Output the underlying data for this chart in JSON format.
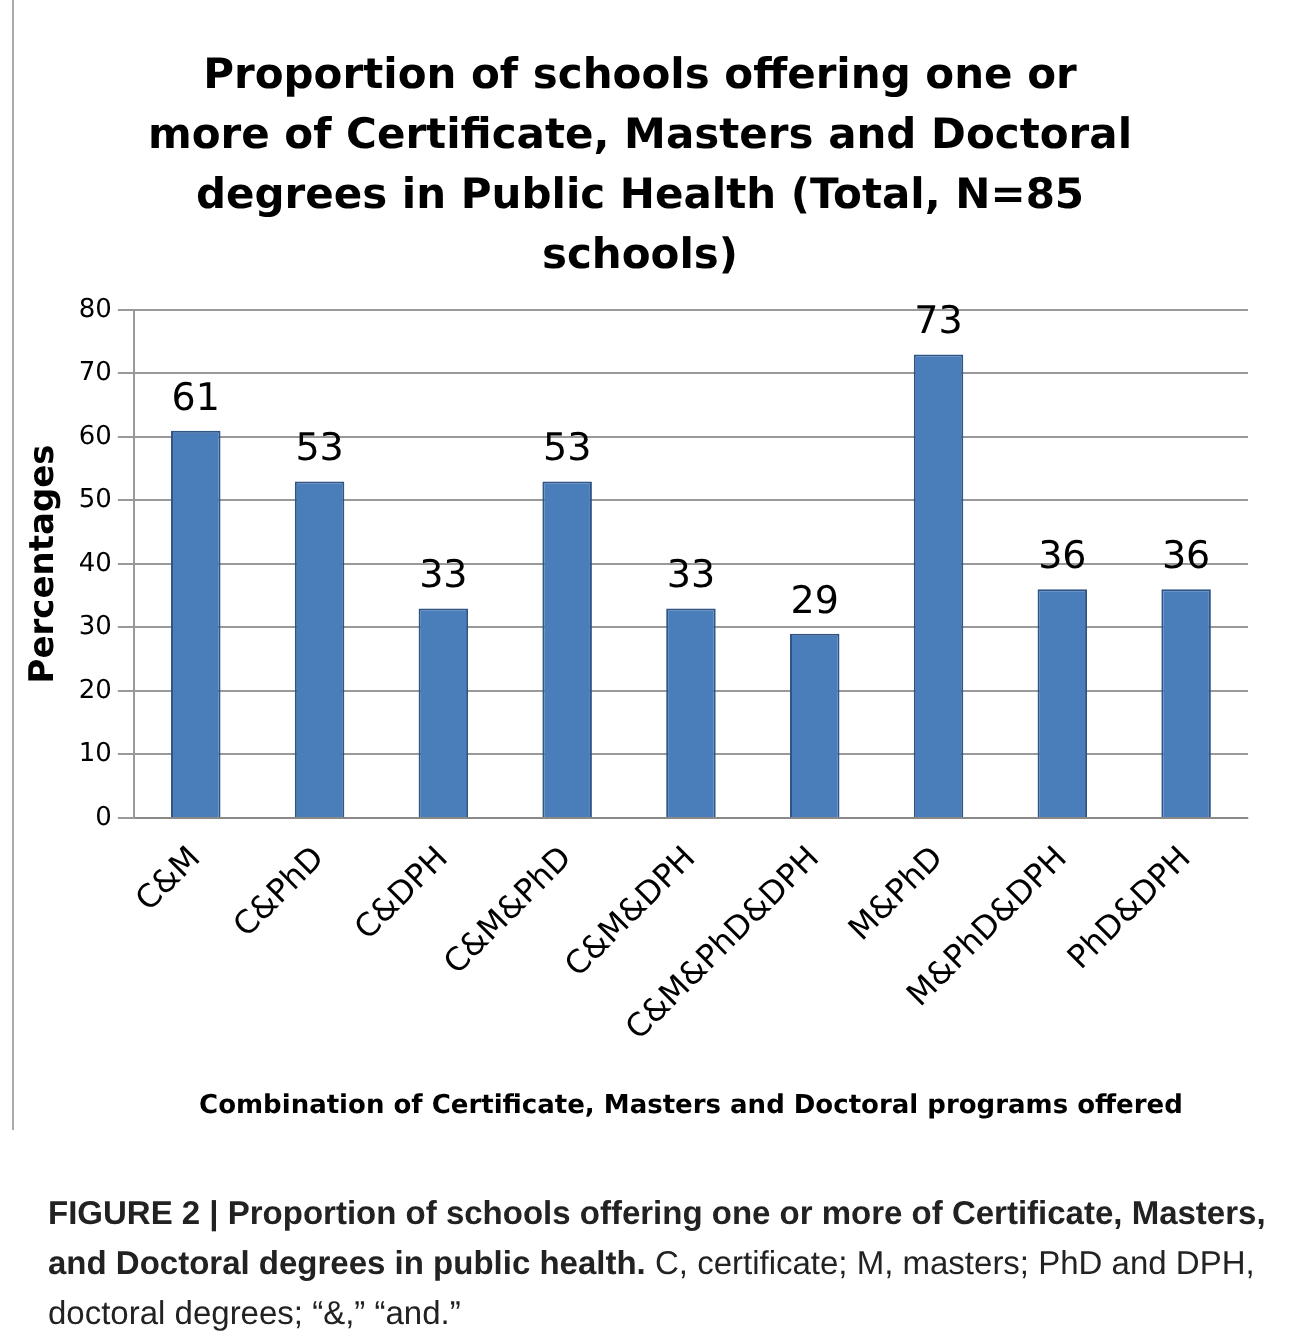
{
  "chart_data": {
    "type": "bar",
    "title": "Proportion of schools offering one or more of Certificate, Masters and Doctoral degrees in Public Health (Total, N=85 schools)",
    "categories": [
      "C&M",
      "C&PhD",
      "C&DPH",
      "C&M&PhD",
      "C&M&DPH",
      "C&M&PhD&DPH",
      "M&PhD",
      "M&PhD&DPH",
      "PhD&DPH"
    ],
    "values": [
      61,
      53,
      33,
      53,
      33,
      29,
      73,
      36,
      36
    ],
    "color": "#4a7ebb",
    "ylabel": "Percentages",
    "xlabel": "Combination of Certificate, Masters and Doctoral programs offered",
    "ylim": [
      0,
      80
    ],
    "yticks": [
      0,
      10,
      20,
      30,
      40,
      50,
      60,
      70,
      80
    ],
    "grid": "y",
    "legend": false,
    "data_labels": true,
    "annotations": [
      "FIGURE 2 | Proportion of schools offering one or more of Certificate, Masters, and Doctoral degrees in public health.",
      "C, certificate; M, masters; PhD and DPH, doctoral degrees; “&,” “and.”"
    ]
  }
}
